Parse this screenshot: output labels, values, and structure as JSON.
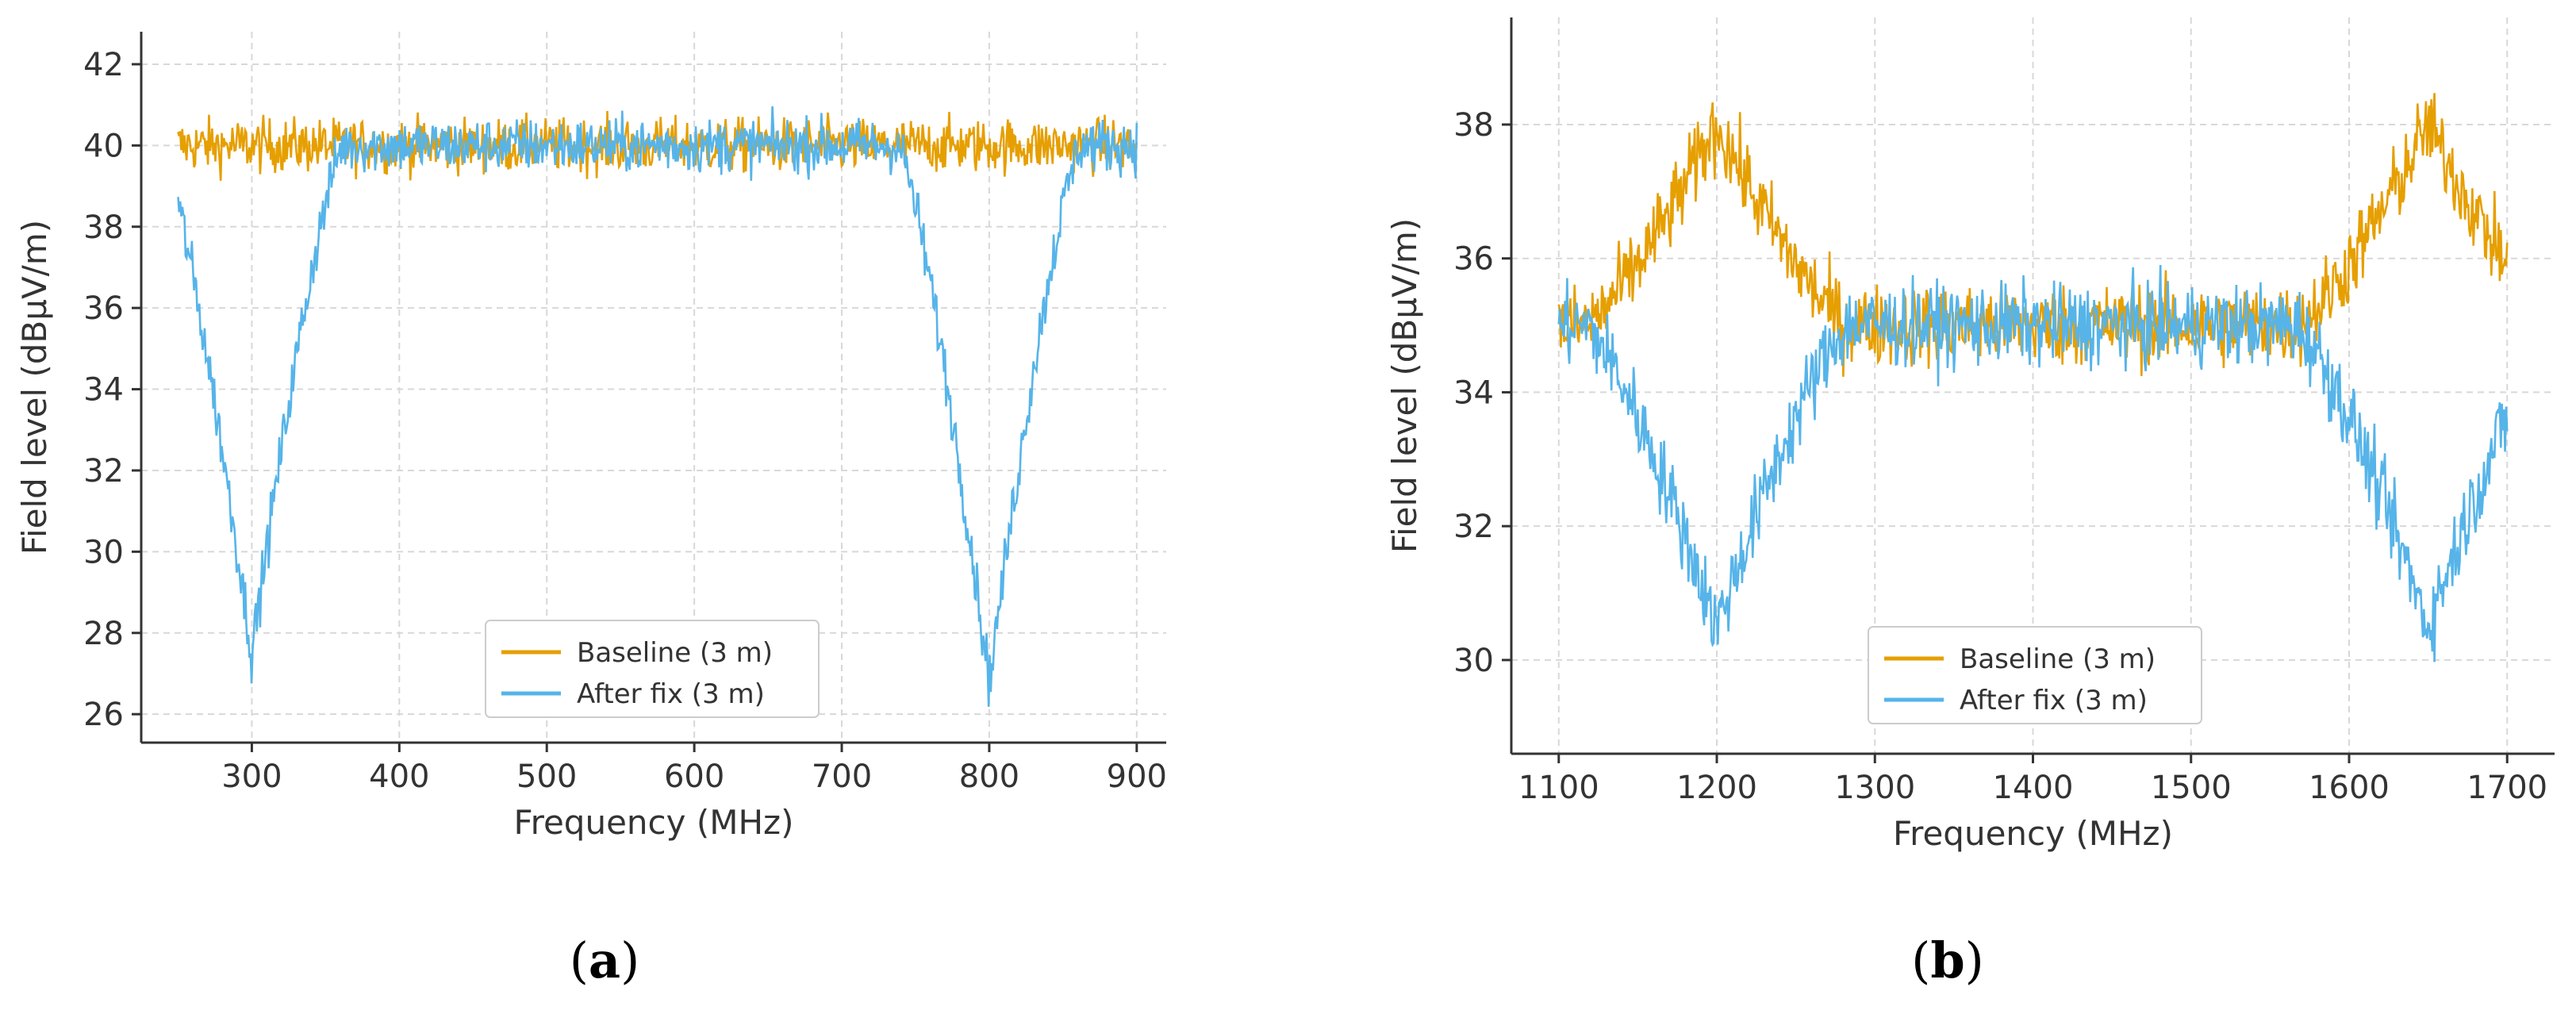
{
  "colors": {
    "baseline": "#E69F00",
    "after_fix": "#56B4E9"
  },
  "chart_data": [
    {
      "type": "line",
      "panel_label": "(a)",
      "panel_letter": "a",
      "xlabel": "Frequency (MHz)",
      "ylabel": "Field level (dBμV/m)",
      "xlim": [
        225,
        920
      ],
      "ylim": [
        25.3,
        42.8
      ],
      "xticks": [
        300,
        400,
        500,
        600,
        700,
        800,
        900
      ],
      "yticks": [
        26,
        28,
        30,
        32,
        34,
        36,
        38,
        40,
        42
      ],
      "grid": true,
      "legend_position": "lower-center",
      "notch_depth": 12.5,
      "series": [
        {
          "name": "Baseline (3 m)",
          "x_range": [
            250,
            900
          ],
          "base_level": 40,
          "bumps": [],
          "noise": 0.6
        },
        {
          "name": "After fix (3 m)",
          "x_range": [
            250,
            900
          ],
          "base_level": 40,
          "bumps": [
            {
              "center": 300,
              "depth": -12.5,
              "width": 28
            },
            {
              "center": 800,
              "depth": -13.2,
              "width": 28
            }
          ],
          "noise": 0.6
        }
      ]
    },
    {
      "type": "line",
      "panel_label": "(b)",
      "panel_letter": "b",
      "xlabel": "Frequency (MHz)",
      "ylabel": "Field level (dBμV/m)",
      "xlim": [
        1070,
        1730
      ],
      "ylim": [
        28.6,
        39.6
      ],
      "xticks": [
        1100,
        1200,
        1300,
        1400,
        1500,
        1600,
        1700
      ],
      "yticks": [
        30,
        32,
        34,
        36,
        38
      ],
      "grid": true,
      "legend_position": "lower-center",
      "series": [
        {
          "name": "Baseline (3 m)",
          "x_range": [
            1100,
            1700
          ],
          "base_level": 35,
          "bumps": [
            {
              "center": 1200,
              "depth": 3,
              "width": 38
            },
            {
              "center": 1650,
              "depth": 3,
              "width": 38
            }
          ],
          "noise": 0.55
        },
        {
          "name": "After fix (3 m)",
          "x_range": [
            1100,
            1700
          ],
          "base_level": 35,
          "bumps": [
            {
              "center": 1200,
              "depth": -4.5,
              "width": 38
            },
            {
              "center": 1650,
              "depth": -4.5,
              "width": 38
            }
          ],
          "noise": 0.55
        }
      ]
    }
  ]
}
